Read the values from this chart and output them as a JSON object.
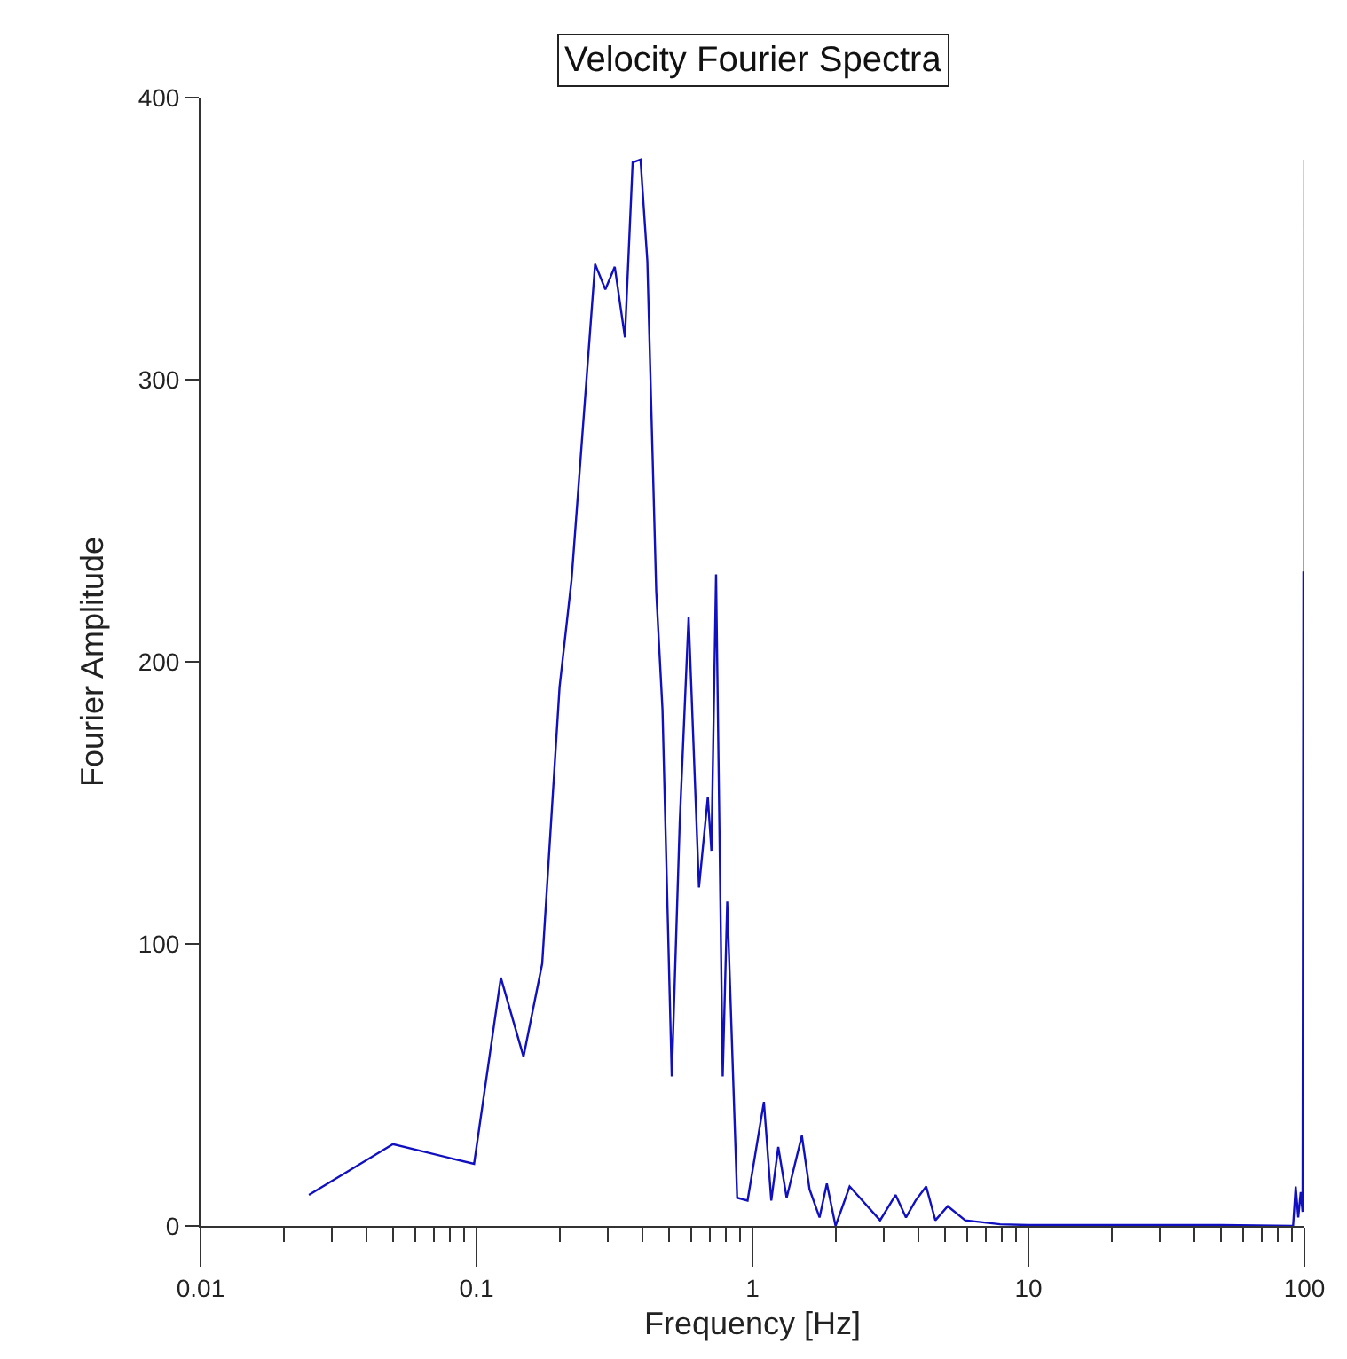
{
  "chart_data": {
    "type": "line",
    "title": "Velocity Fourier Spectra",
    "xlabel": "Frequency [Hz]",
    "ylabel": "Fourier Amplitude",
    "log": "x",
    "marker": "none",
    "line_style": "solid",
    "xlim": [
      0.01,
      100
    ],
    "xticks": [
      0.01,
      0.1,
      1,
      10,
      100
    ],
    "ylim": [
      0,
      400
    ],
    "yticks": [
      0,
      100,
      200,
      300,
      400
    ],
    "series": [
      {
        "color": "#1010c0",
        "x": [
          0.0247,
          0.0498,
          0.098,
          0.1225,
          0.148,
          0.173,
          0.2,
          0.221,
          0.269,
          0.293,
          0.317,
          0.345,
          0.368,
          0.393,
          0.416,
          0.448,
          0.472,
          0.51,
          0.545,
          0.587,
          0.64,
          0.689,
          0.71,
          0.738,
          0.78,
          0.81,
          0.88,
          0.96,
          1.1,
          1.17,
          1.24,
          1.33,
          1.51,
          1.61,
          1.75,
          1.86,
          2.0,
          2.25,
          2.45,
          2.9,
          3.3,
          3.6,
          3.9,
          4.26,
          4.6,
          5.1,
          5.9,
          7.9,
          10,
          20,
          50,
          91,
          93,
          95,
          97,
          98.5,
          99.2,
          99.6,
          100
        ],
        "values": [
          11,
          29,
          22,
          88,
          60,
          93,
          191,
          229,
          341,
          332,
          340,
          315,
          377,
          378,
          342,
          225,
          183,
          53,
          143,
          216,
          120,
          152,
          133,
          231,
          53,
          115,
          10,
          9,
          44,
          9,
          28,
          10,
          32,
          13,
          3,
          15,
          0,
          14,
          10,
          2,
          11,
          3,
          9,
          14,
          2,
          7,
          2,
          0.6,
          0.3,
          0.3,
          0.3,
          0,
          14,
          3,
          12,
          5,
          232,
          20,
          378
        ]
      }
    ]
  }
}
